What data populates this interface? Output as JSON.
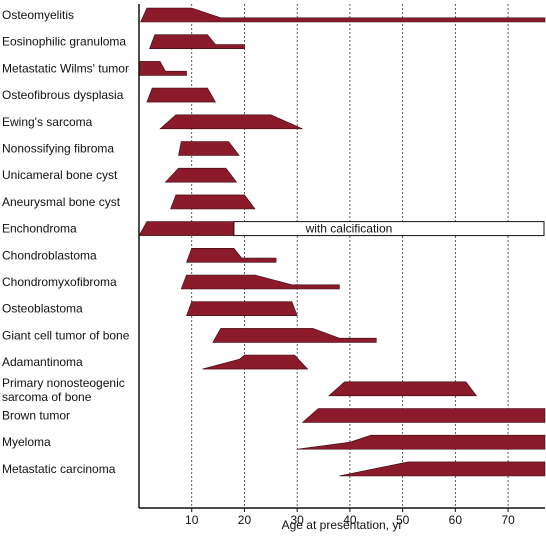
{
  "chart_data": {
    "type": "range-profile",
    "xlabel": "Age at presentation, yr",
    "xlim": [
      0,
      77
    ],
    "xticks": [
      10,
      20,
      30,
      40,
      50,
      60,
      70
    ],
    "grid": "vertical-dotted",
    "colors": {
      "bar": "#8b1a2b",
      "bar_stroke": "#3a0a12",
      "annotation_fill": "#ffffff"
    },
    "series": [
      {
        "name": "Osteomyelitis",
        "profile": [
          [
            0.3,
            0
          ],
          [
            1.5,
            1
          ],
          [
            10,
            1
          ],
          [
            15.5,
            0.3
          ],
          [
            77,
            0.3
          ],
          [
            77,
            0
          ]
        ]
      },
      {
        "name": "Eosinophilic granuloma",
        "profile": [
          [
            2,
            0
          ],
          [
            3,
            1
          ],
          [
            13,
            1
          ],
          [
            14.5,
            0.3
          ],
          [
            20,
            0.3
          ],
          [
            20,
            0
          ]
        ]
      },
      {
        "name": "Metastatic Wilms' tumor",
        "profile": [
          [
            0,
            0
          ],
          [
            0,
            1
          ],
          [
            4,
            1
          ],
          [
            5,
            0.3
          ],
          [
            9,
            0.3
          ],
          [
            9,
            0
          ]
        ]
      },
      {
        "name": "Osteofibrous dysplasia",
        "profile": [
          [
            1.5,
            0
          ],
          [
            2.5,
            1
          ],
          [
            13,
            1
          ],
          [
            14.5,
            0
          ]
        ]
      },
      {
        "name": "Ewing's sarcoma",
        "profile": [
          [
            4,
            0
          ],
          [
            7,
            1
          ],
          [
            25,
            1
          ],
          [
            31,
            0
          ]
        ]
      },
      {
        "name": "Nonossifying fibroma",
        "profile": [
          [
            7.5,
            0
          ],
          [
            8,
            1
          ],
          [
            17,
            1
          ],
          [
            19,
            0
          ]
        ]
      },
      {
        "name": "Unicameral bone cyst",
        "profile": [
          [
            5,
            0
          ],
          [
            7.5,
            1
          ],
          [
            16.5,
            1
          ],
          [
            18.5,
            0
          ]
        ]
      },
      {
        "name": "Aneurysmal bone cyst",
        "profile": [
          [
            6,
            0
          ],
          [
            7,
            1
          ],
          [
            20,
            1
          ],
          [
            22,
            0
          ]
        ]
      },
      {
        "name": "Enchondroma",
        "profile": [
          [
            0,
            0
          ],
          [
            1.5,
            1
          ],
          [
            18,
            1
          ],
          [
            18,
            0
          ]
        ],
        "annotation": {
          "text": "with calcification",
          "x0": 18,
          "x1": 77
        }
      },
      {
        "name": "Chondroblastoma",
        "profile": [
          [
            9,
            0
          ],
          [
            10,
            1
          ],
          [
            18,
            1
          ],
          [
            19.5,
            0.3
          ],
          [
            26,
            0.3
          ],
          [
            26,
            0
          ]
        ]
      },
      {
        "name": "Chondromyxofibroma",
        "profile": [
          [
            8,
            0
          ],
          [
            9,
            1
          ],
          [
            22,
            1
          ],
          [
            29,
            0.3
          ],
          [
            38,
            0.3
          ],
          [
            38,
            0
          ]
        ]
      },
      {
        "name": "Osteoblastoma",
        "profile": [
          [
            9,
            0
          ],
          [
            10,
            1
          ],
          [
            29,
            1
          ],
          [
            30,
            0
          ]
        ]
      },
      {
        "name": "Giant cell tumor of bone",
        "profile": [
          [
            14,
            0
          ],
          [
            15.5,
            1
          ],
          [
            33,
            1
          ],
          [
            38,
            0.3
          ],
          [
            45,
            0.3
          ],
          [
            45,
            0
          ]
        ]
      },
      {
        "name": "Adamantinoma",
        "profile": [
          [
            12,
            0
          ],
          [
            19,
            0.7
          ],
          [
            20,
            1
          ],
          [
            29.5,
            1
          ],
          [
            32,
            0
          ]
        ]
      },
      {
        "name": "Primary nonosteogenic sarcoma of bone",
        "profile": [
          [
            36,
            0
          ],
          [
            39,
            1
          ],
          [
            62,
            1
          ],
          [
            64,
            0
          ]
        ]
      },
      {
        "name": "Brown tumor",
        "profile": [
          [
            31,
            0
          ],
          [
            34,
            1
          ],
          [
            77,
            1
          ],
          [
            77,
            0
          ]
        ]
      },
      {
        "name": "Myeloma",
        "profile": [
          [
            30,
            0
          ],
          [
            40,
            0.5
          ],
          [
            44,
            1
          ],
          [
            77,
            1
          ],
          [
            77,
            0
          ]
        ]
      },
      {
        "name": "Metastatic carcinoma",
        "profile": [
          [
            38,
            0
          ],
          [
            51,
            1
          ],
          [
            77,
            1
          ],
          [
            77,
            0
          ]
        ]
      }
    ]
  }
}
